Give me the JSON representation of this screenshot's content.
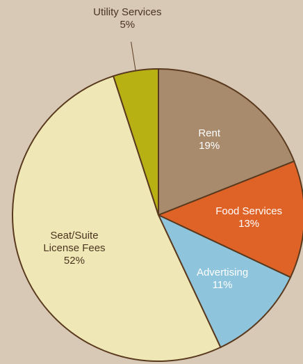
{
  "chart_data": {
    "type": "pie",
    "categories": [
      "Rent",
      "Food Services",
      "Advertising",
      "Seat/Suite License Fees",
      "Utility Services"
    ],
    "values": [
      19,
      13,
      11,
      52,
      5
    ],
    "value_labels": [
      "19%",
      "13%",
      "11%",
      "52%",
      "5%"
    ],
    "colors": [
      "#a88a6c",
      "#df6327",
      "#8ec4dc",
      "#efe8b6",
      "#b7b113"
    ]
  }
}
